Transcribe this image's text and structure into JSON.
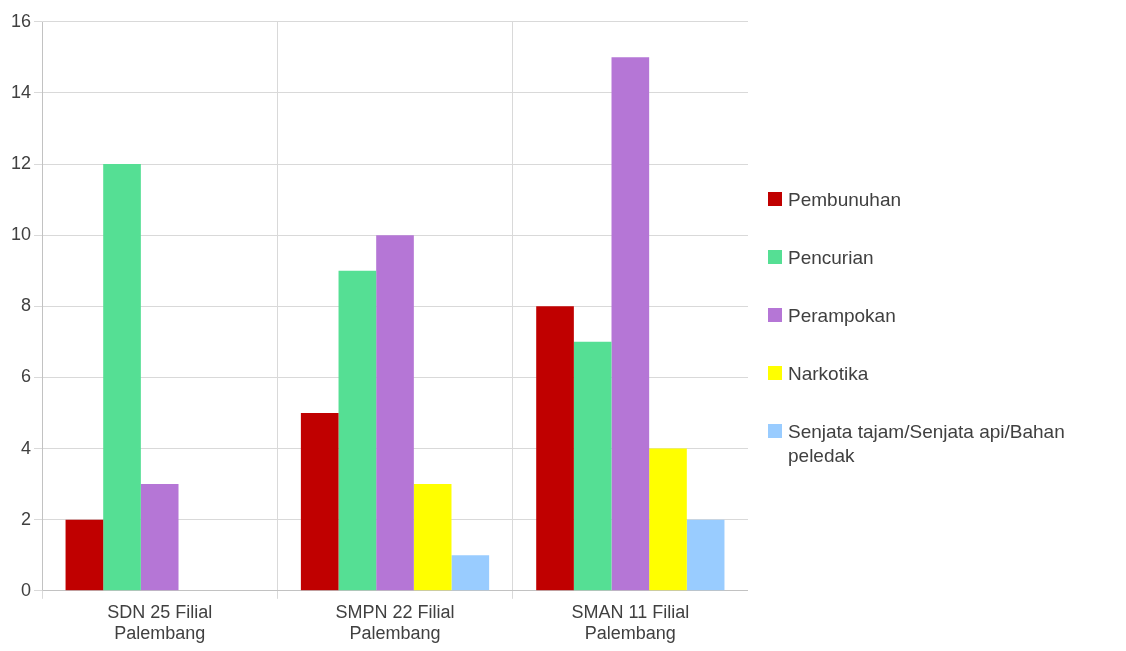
{
  "chart_data": {
    "type": "bar",
    "categories": [
      "SDN 25 Filial Palembang",
      "SMPN 22 Filial Palembang",
      "SMAN 11 Filial Palembang"
    ],
    "series": [
      {
        "name": "Pembunuhan",
        "color": "#c00000",
        "values": [
          2,
          5,
          8
        ]
      },
      {
        "name": "Pencurian",
        "color": "#55df94",
        "values": [
          12,
          9,
          7
        ]
      },
      {
        "name": "Perampokan",
        "color": "#b576d6",
        "values": [
          3,
          10,
          15
        ]
      },
      {
        "name": "Narkotika",
        "color": "#ffff00",
        "values": [
          0,
          3,
          4
        ]
      },
      {
        "name": "Senjata tajam/Senjata api/Bahan peledak",
        "color": "#99ccff",
        "values": [
          0,
          1,
          2
        ]
      }
    ],
    "ylim": [
      0,
      16
    ],
    "yticks": [
      0,
      2,
      4,
      6,
      8,
      10,
      12,
      14,
      16
    ],
    "grid": true,
    "legend": "right"
  }
}
